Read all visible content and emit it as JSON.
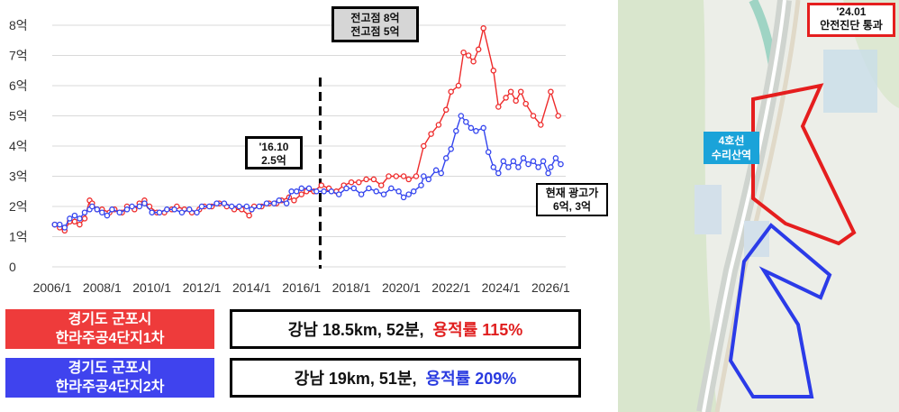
{
  "chart_data": {
    "type": "line",
    "yticks": [
      "0",
      "1억",
      "2억",
      "3억",
      "4억",
      "5억",
      "6억",
      "7억",
      "8억"
    ],
    "ylim": [
      0,
      8
    ],
    "xlim": [
      2006,
      2026.6
    ],
    "xticks": [
      "2006/1",
      "2008/1",
      "2010/1",
      "2012/1",
      "2014/1",
      "2016/1",
      "2018/1",
      "2020/1",
      "2022/1",
      "2024/1",
      "2026/1"
    ],
    "grid": true,
    "divider_x": 2016.75,
    "series": [
      {
        "name": "경기도 군포시 한라주공4단지1차",
        "color": "#ee2a2a",
        "points": [
          [
            2006.1,
            1.4
          ],
          [
            2006.3,
            1.3
          ],
          [
            2006.5,
            1.2
          ],
          [
            2006.7,
            1.5
          ],
          [
            2006.9,
            1.5
          ],
          [
            2007.1,
            1.4
          ],
          [
            2007.3,
            1.6
          ],
          [
            2007.5,
            2.2
          ],
          [
            2007.6,
            2.1
          ],
          [
            2007.8,
            1.9
          ],
          [
            2008.0,
            1.9
          ],
          [
            2008.3,
            1.8
          ],
          [
            2008.5,
            1.9
          ],
          [
            2008.8,
            1.8
          ],
          [
            2009.0,
            2.0
          ],
          [
            2009.3,
            1.9
          ],
          [
            2009.5,
            2.1
          ],
          [
            2009.7,
            2.2
          ],
          [
            2009.9,
            2.0
          ],
          [
            2010.2,
            1.8
          ],
          [
            2010.5,
            1.8
          ],
          [
            2010.8,
            1.9
          ],
          [
            2011.0,
            2.0
          ],
          [
            2011.3,
            1.9
          ],
          [
            2011.6,
            1.8
          ],
          [
            2011.9,
            1.9
          ],
          [
            2012.1,
            2.0
          ],
          [
            2012.4,
            2.0
          ],
          [
            2012.7,
            2.1
          ],
          [
            2013.0,
            2.0
          ],
          [
            2013.3,
            1.9
          ],
          [
            2013.6,
            1.9
          ],
          [
            2013.9,
            1.7
          ],
          [
            2014.1,
            2.0
          ],
          [
            2014.4,
            2.0
          ],
          [
            2014.7,
            2.1
          ],
          [
            2015.0,
            2.1
          ],
          [
            2015.2,
            2.2
          ],
          [
            2015.5,
            2.3
          ],
          [
            2015.7,
            2.2
          ],
          [
            2016.0,
            2.4
          ],
          [
            2016.2,
            2.5
          ],
          [
            2016.5,
            2.5
          ],
          [
            2016.8,
            2.7
          ],
          [
            2017.1,
            2.6
          ],
          [
            2017.4,
            2.5
          ],
          [
            2017.7,
            2.7
          ],
          [
            2018.0,
            2.8
          ],
          [
            2018.3,
            2.8
          ],
          [
            2018.6,
            2.9
          ],
          [
            2018.9,
            2.9
          ],
          [
            2019.2,
            2.7
          ],
          [
            2019.5,
            3.0
          ],
          [
            2019.8,
            3.0
          ],
          [
            2020.1,
            3.0
          ],
          [
            2020.3,
            2.9
          ],
          [
            2020.6,
            3.0
          ],
          [
            2020.9,
            4.0
          ],
          [
            2021.2,
            4.4
          ],
          [
            2021.5,
            4.7
          ],
          [
            2021.8,
            5.2
          ],
          [
            2022.0,
            5.8
          ],
          [
            2022.3,
            6.0
          ],
          [
            2022.5,
            7.1
          ],
          [
            2022.7,
            7.0
          ],
          [
            2022.9,
            6.8
          ],
          [
            2023.1,
            7.2
          ],
          [
            2023.3,
            7.9
          ],
          [
            2023.7,
            6.5
          ],
          [
            2023.9,
            5.3
          ],
          [
            2024.2,
            5.6
          ],
          [
            2024.4,
            5.8
          ],
          [
            2024.6,
            5.5
          ],
          [
            2024.8,
            5.8
          ],
          [
            2025.0,
            5.4
          ],
          [
            2025.3,
            5.0
          ],
          [
            2025.6,
            4.7
          ],
          [
            2026.0,
            5.8
          ],
          [
            2026.3,
            5.0
          ]
        ]
      },
      {
        "name": "경기도 군포시 한라주공4단지2차",
        "color": "#3344ee",
        "points": [
          [
            2006.1,
            1.4
          ],
          [
            2006.3,
            1.4
          ],
          [
            2006.5,
            1.3
          ],
          [
            2006.7,
            1.6
          ],
          [
            2006.9,
            1.7
          ],
          [
            2007.1,
            1.6
          ],
          [
            2007.3,
            1.8
          ],
          [
            2007.5,
            1.9
          ],
          [
            2007.6,
            2.0
          ],
          [
            2007.8,
            1.9
          ],
          [
            2008.0,
            1.8
          ],
          [
            2008.2,
            1.7
          ],
          [
            2008.4,
            1.9
          ],
          [
            2008.7,
            1.8
          ],
          [
            2009.0,
            1.9
          ],
          [
            2009.2,
            2.0
          ],
          [
            2009.5,
            2.0
          ],
          [
            2009.7,
            2.1
          ],
          [
            2010.0,
            1.8
          ],
          [
            2010.3,
            1.8
          ],
          [
            2010.6,
            1.9
          ],
          [
            2010.9,
            1.9
          ],
          [
            2011.2,
            1.8
          ],
          [
            2011.5,
            1.9
          ],
          [
            2011.8,
            1.8
          ],
          [
            2012.0,
            2.0
          ],
          [
            2012.3,
            2.0
          ],
          [
            2012.6,
            2.1
          ],
          [
            2012.9,
            2.1
          ],
          [
            2013.2,
            2.0
          ],
          [
            2013.5,
            2.0
          ],
          [
            2013.8,
            2.0
          ],
          [
            2014.0,
            1.9
          ],
          [
            2014.3,
            2.0
          ],
          [
            2014.6,
            2.1
          ],
          [
            2014.9,
            2.1
          ],
          [
            2015.1,
            2.2
          ],
          [
            2015.4,
            2.1
          ],
          [
            2015.6,
            2.5
          ],
          [
            2015.8,
            2.5
          ],
          [
            2016.0,
            2.6
          ],
          [
            2016.3,
            2.6
          ],
          [
            2016.6,
            2.5
          ],
          [
            2016.9,
            2.5
          ],
          [
            2017.2,
            2.5
          ],
          [
            2017.5,
            2.4
          ],
          [
            2017.8,
            2.6
          ],
          [
            2018.1,
            2.6
          ],
          [
            2018.4,
            2.4
          ],
          [
            2018.7,
            2.6
          ],
          [
            2019.0,
            2.5
          ],
          [
            2019.3,
            2.4
          ],
          [
            2019.6,
            2.6
          ],
          [
            2019.9,
            2.5
          ],
          [
            2020.1,
            2.3
          ],
          [
            2020.3,
            2.4
          ],
          [
            2020.5,
            2.5
          ],
          [
            2020.8,
            2.7
          ],
          [
            2020.9,
            3.0
          ],
          [
            2021.1,
            2.9
          ],
          [
            2021.4,
            3.2
          ],
          [
            2021.6,
            3.1
          ],
          [
            2021.8,
            3.6
          ],
          [
            2022.0,
            3.9
          ],
          [
            2022.2,
            4.5
          ],
          [
            2022.4,
            5.0
          ],
          [
            2022.6,
            4.8
          ],
          [
            2022.8,
            4.6
          ],
          [
            2023.0,
            4.5
          ],
          [
            2023.3,
            4.6
          ],
          [
            2023.5,
            3.8
          ],
          [
            2023.7,
            3.3
          ],
          [
            2023.9,
            3.1
          ],
          [
            2024.1,
            3.5
          ],
          [
            2024.3,
            3.3
          ],
          [
            2024.5,
            3.5
          ],
          [
            2024.7,
            3.3
          ],
          [
            2024.9,
            3.6
          ],
          [
            2025.1,
            3.4
          ],
          [
            2025.3,
            3.5
          ],
          [
            2025.5,
            3.3
          ],
          [
            2025.7,
            3.5
          ],
          [
            2025.9,
            3.1
          ],
          [
            2026.0,
            3.3
          ],
          [
            2026.2,
            3.6
          ],
          [
            2026.4,
            3.4
          ]
        ]
      }
    ],
    "annotations": {
      "peak": [
        "전고점 8억",
        "전고점 5억"
      ],
      "divider": [
        "'16.10",
        "2.5억"
      ],
      "current": [
        "현재 광고가",
        "6억, 3억"
      ]
    }
  },
  "legend": {
    "row1_name": [
      "경기도 군포시",
      "한라주공4단지1차"
    ],
    "row1_info": "강남 18.5km, 52분, ",
    "row1_ratio": "용적률 115%",
    "row2_name": [
      "경기도 군포시",
      "한라주공4단지2차"
    ],
    "row2_info": "강남 19km, 51분, ",
    "row2_ratio": "용적률 209%",
    "red": "#ee3b3b",
    "blue": "#3f43ee"
  },
  "map": {
    "station_label": [
      "4호선",
      "수리산역"
    ],
    "notice": [
      "'24.01",
      "안전진단 통과"
    ]
  }
}
